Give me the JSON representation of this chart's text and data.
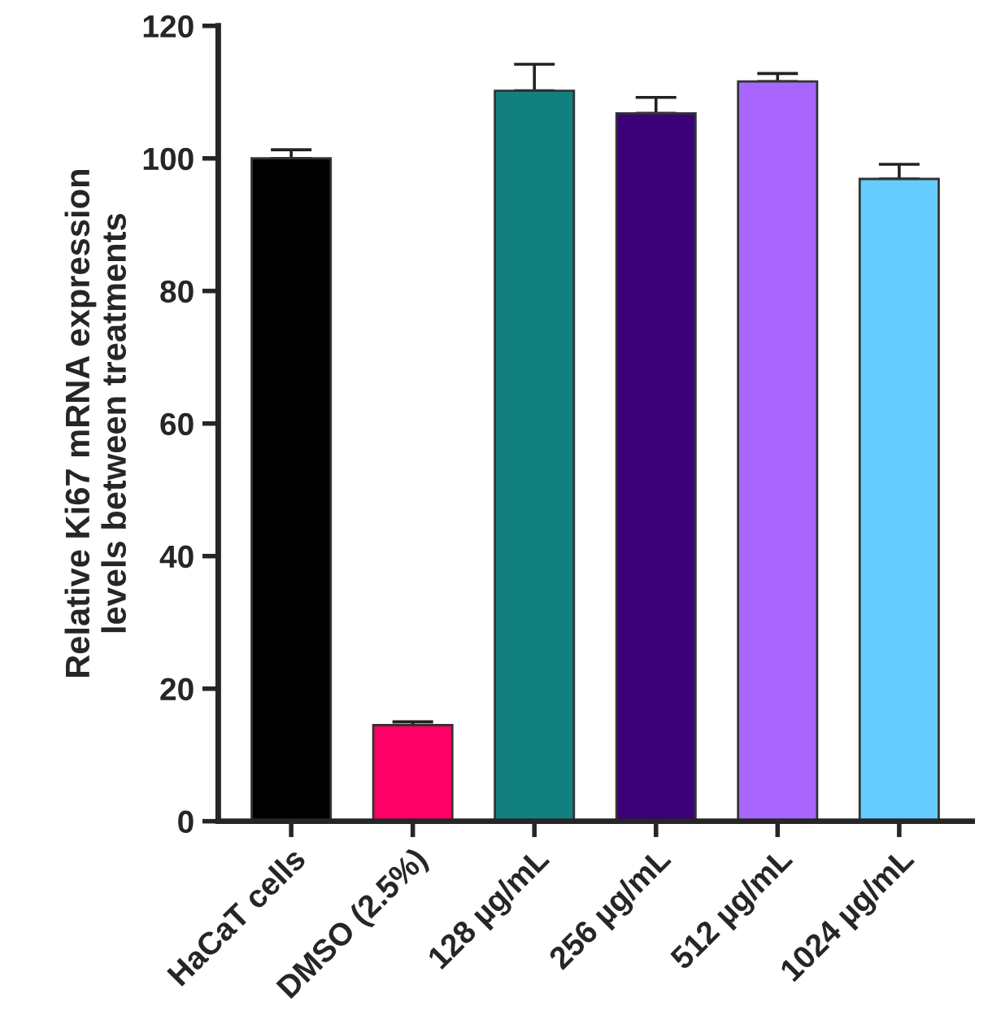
{
  "chart_data": {
    "type": "bar",
    "ylabel": "Relative Ki67 mRNA expression\nlevels between treatments",
    "categories": [
      "HaCaT cells",
      "DMSO (2.5%)",
      "128 µg/mL",
      "256 µg/mL",
      "512 µg/mL",
      "1024 µg/mL"
    ],
    "values": [
      100,
      14.5,
      110.2,
      106.8,
      111.6,
      96.9
    ],
    "errors": [
      [
        100,
        101.3
      ],
      [
        14.5,
        15
      ],
      [
        110.2,
        114.2
      ],
      [
        106.8,
        109.2
      ],
      [
        111.6,
        112.8
      ],
      [
        96.9,
        99.1
      ]
    ],
    "colors": [
      "#000000",
      "#ff0066",
      "#138080",
      "#3c0078",
      "#a966ff",
      "#66ccff"
    ],
    "ylim": [
      0,
      120
    ],
    "yticks": [
      0,
      20,
      40,
      60,
      80,
      100,
      120
    ],
    "grid": false,
    "legend": false
  }
}
